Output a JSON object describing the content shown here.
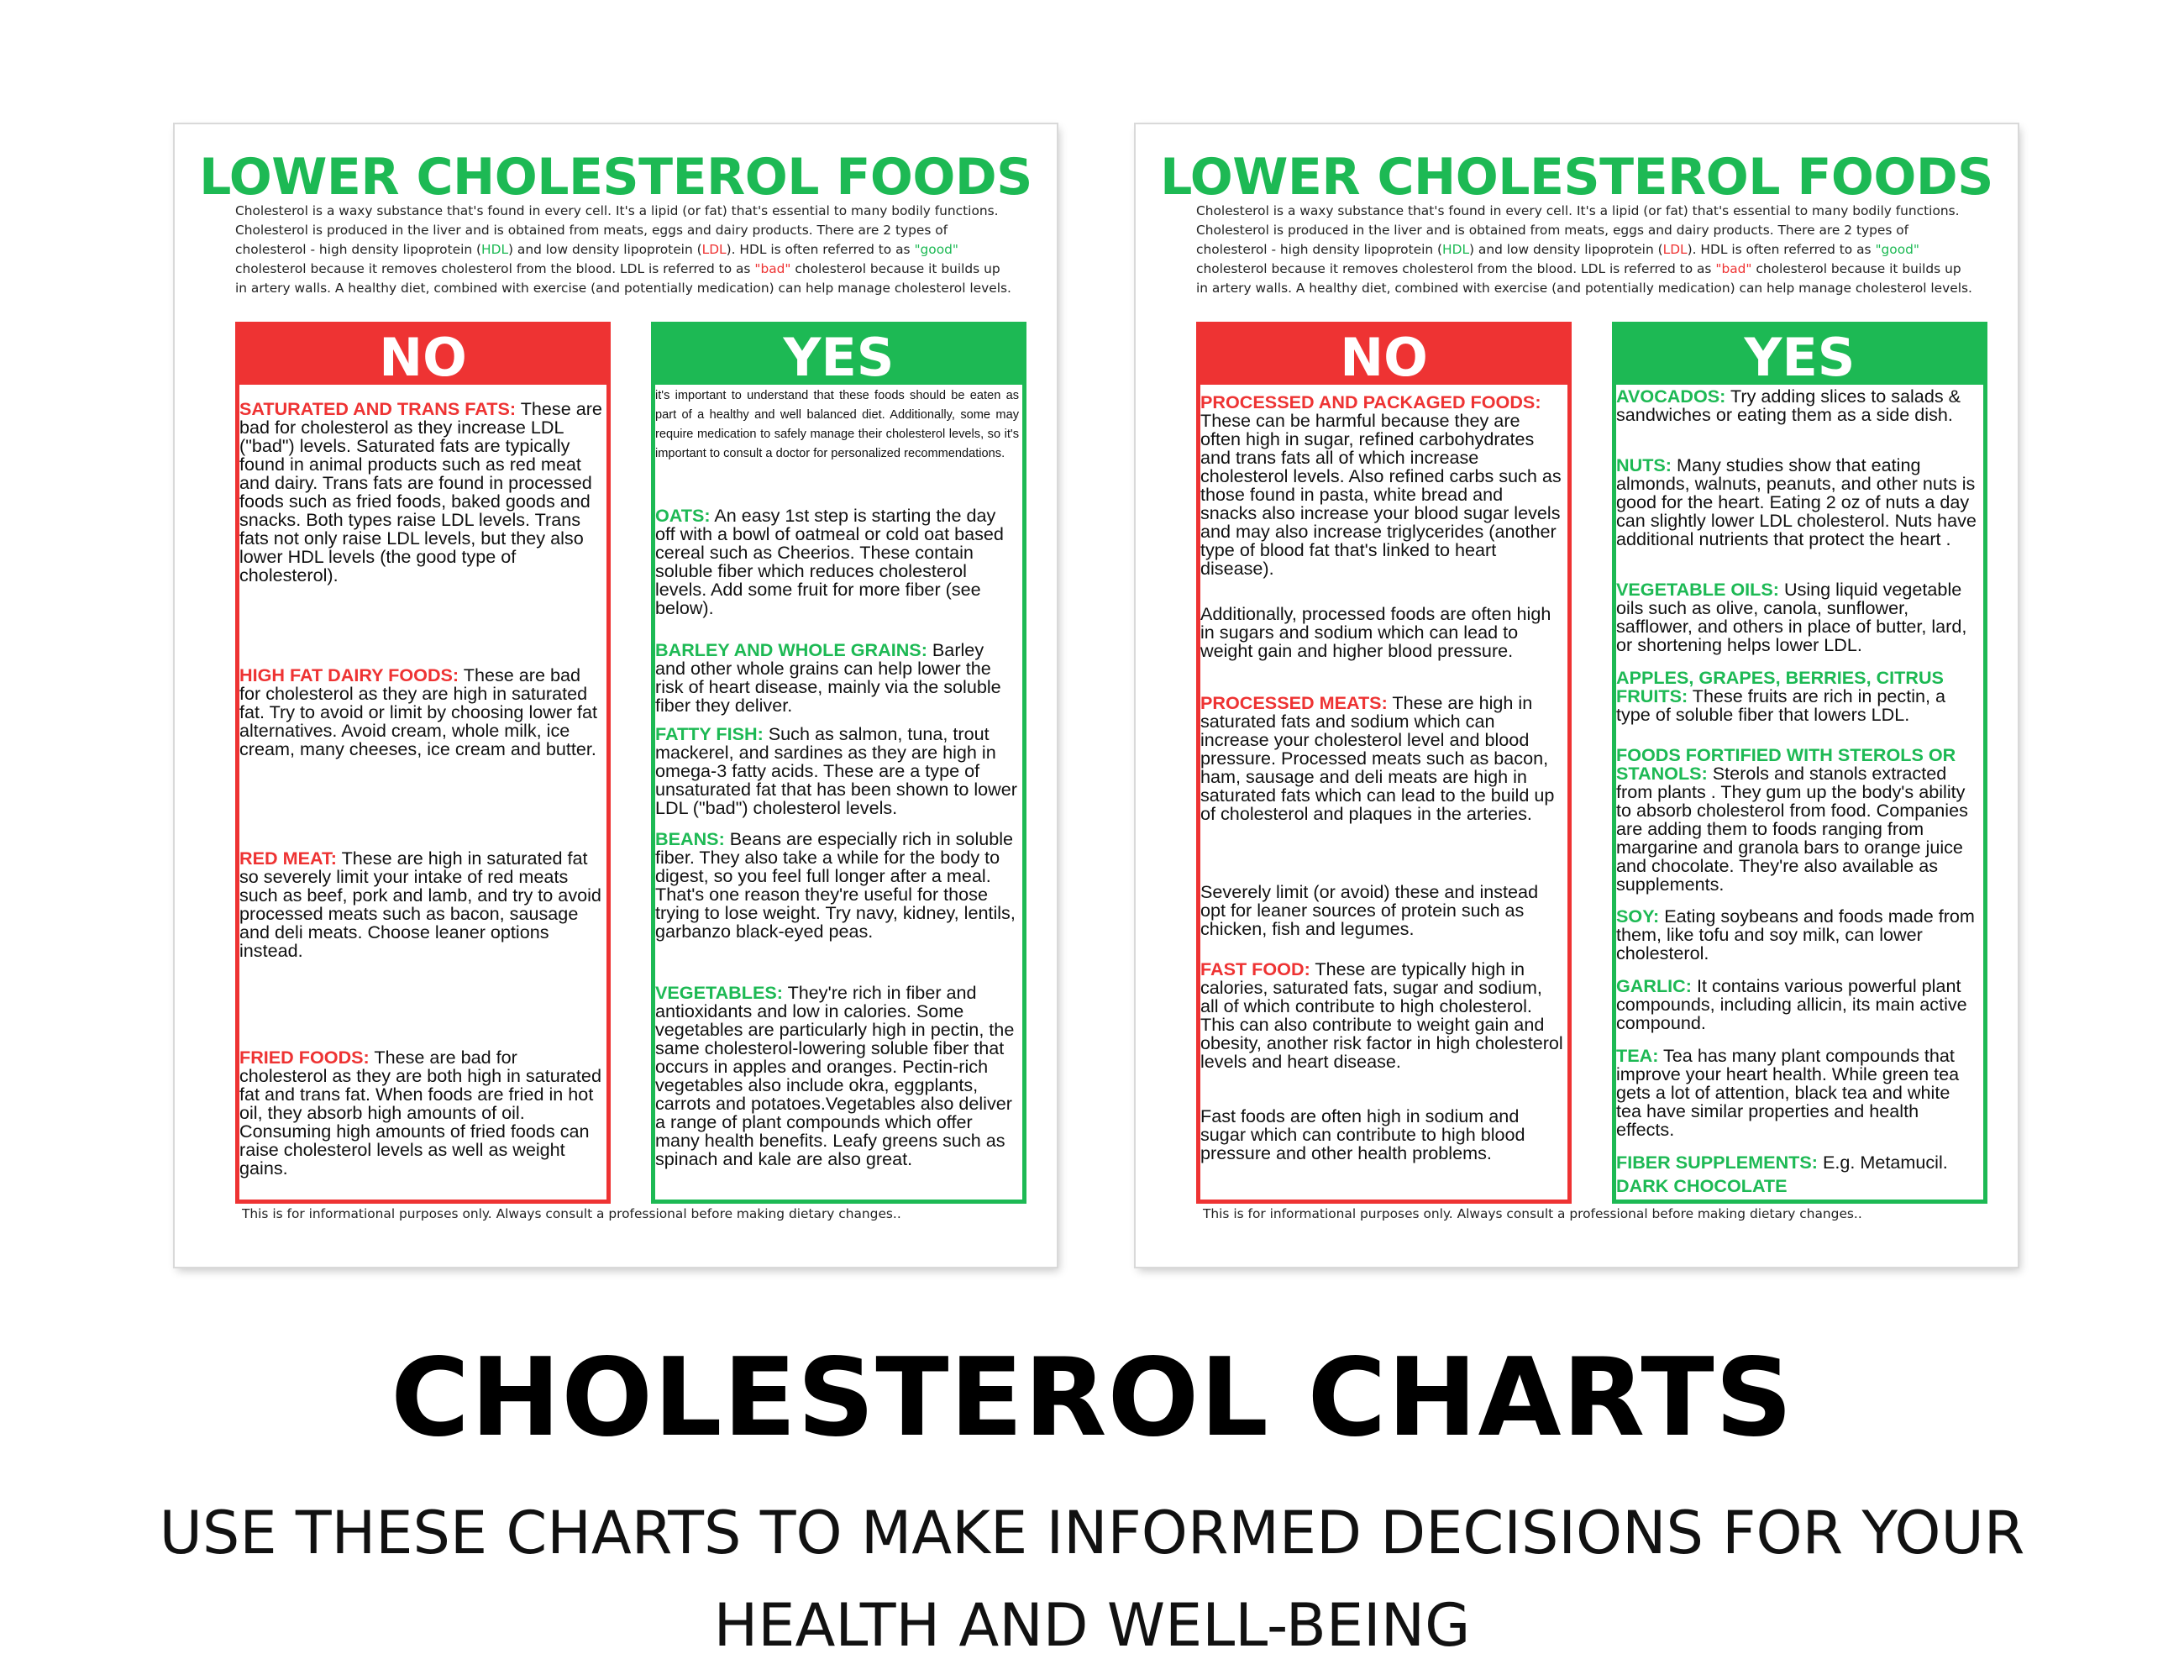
{
  "sheets": [
    {
      "title": "LOWER CHOLESTEROL FOODS",
      "intro": {
        "p1": "Cholesterol is a waxy substance that's found in every cell. It's a lipid (or fat) that's essential to many bodily functions. Cholesterol is produced in the liver and is obtained from meats, eggs and dairy products. There are 2 types of cholesterol - high density lipoprotein (",
        "hdl": "HDL",
        "p2": ") and low density lipoprotein (",
        "ldl": "LDL",
        "p3": "). HDL is often referred to as ",
        "good": "\"good\"",
        "p4": " cholesterol because it removes cholesterol from the blood. LDL is referred to as ",
        "bad": "\"bad\"",
        "p5": " cholesterol because it builds up in artery walls. A healthy diet, combined with exercise (and potentially medication) can help manage cholesterol levels."
      },
      "no": {
        "header": "NO",
        "items": [
          {
            "label": "SATURATED AND TRANS FATS:",
            "text": " These are bad for cholesterol as they increase LDL (\"bad\") levels. Saturated fats are typically found in animal products such as red meat and dairy. Trans fats are found in processed foods such as fried foods, baked goods and snacks. Both types raise LDL levels. Trans fats not only raise LDL levels, but they also lower HDL levels (the good type of cholesterol)."
          },
          {
            "label": "HIGH FAT DAIRY FOODS:",
            "text": " These are bad for cholesterol as they are high in saturated fat.  Try to avoid or limit by choosing lower fat alternatives.  Avoid cream, whole milk, ice cream, many cheeses, ice cream and butter."
          },
          {
            "label": "RED MEAT:",
            "text": " These are high in saturated fat so severely limit your intake of red meats such as beef, pork and lamb, and try to avoid processed meats such as bacon, sausage and deli meats.  Choose leaner options instead."
          },
          {
            "label": "FRIED FOODS:",
            "text": " These are bad for cholesterol as they are both high in saturated fat and trans fat.  When foods are fried in hot oil, they absorb high amounts of oil. Consuming high amounts of fried foods can raise cholesterol levels as well as weight gains."
          }
        ]
      },
      "yes": {
        "header": "YES",
        "note": "it's important to understand that these foods should be eaten as part of a healthy and well balanced diet. Additionally, some may require medication to safely manage their cholesterol levels, so it's important to consult a doctor for personalized recommendations.",
        "items": [
          {
            "label": "OATS:",
            "text": " An easy 1st step is starting the day off with a bowl of oatmeal or cold oat based cereal such as Cheerios.  These contain soluble fiber which reduces cholesterol levels. Add some fruit for more fiber (see below)."
          },
          {
            "label": "BARLEY AND WHOLE GRAINS:",
            "text": " Barley and other whole grains can help lower the risk of heart disease, mainly via the soluble fiber they deliver."
          },
          {
            "label": "FATTY FISH:",
            "text": " Such as salmon, tuna, trout mackerel, and sardines as they are high in omega-3 fatty acids.  These are a type of unsaturated fat that has been shown to lower LDL (\"bad\") cholesterol levels."
          },
          {
            "label": "BEANS:",
            "text": " Beans are especially rich in soluble fiber. They also take a while for the body to digest, so you feel full longer after a meal. That's one reason they're useful for those trying to lose weight.  Try navy, kidney, lentils, garbanzo black-eyed peas."
          },
          {
            "label": "VEGETABLES:",
            "text": " They're rich in fiber and antioxidants and low in calories. Some vegetables are particularly high in pectin, the same cholesterol-lowering soluble fiber that occurs in apples and oranges. Pectin-rich vegetables also include okra, eggplants, carrots and potatoes.Vegetables also deliver a range of plant compounds which offer many health benefits. Leafy greens such as spinach and kale are also great."
          }
        ]
      },
      "footer": "This is for informational purposes only. Always consult a professional before making dietary changes.."
    },
    {
      "title": "LOWER CHOLESTEROL FOODS",
      "intro": {
        "p1": "Cholesterol is a waxy substance that's found in every cell. It's a lipid (or fat) that's essential to many bodily functions. Cholesterol is produced in the liver and is obtained from meats, eggs and dairy products. There are 2 types of cholesterol - high density lipoprotein (",
        "hdl": "HDL",
        "p2": ") and low density lipoprotein (",
        "ldl": "LDL",
        "p3": "). HDL is often referred to as ",
        "good": "\"good\"",
        "p4": " cholesterol because it removes cholesterol from the blood. LDL is referred to as ",
        "bad": "\"bad\"",
        "p5": " cholesterol because it builds up in artery walls. A healthy diet, combined with exercise (and potentially medication) can help manage cholesterol levels."
      },
      "no": {
        "header": "NO",
        "items": [
          {
            "label": "PROCESSED AND PACKAGED FOODS:",
            "text": " These can be harmful because they are often high in sugar, refined carbohydrates and trans fats all of which increase cholesterol levels. Also refined carbs such as those found in pasta, white bread and snacks also increase your blood sugar levels and may also increase triglycerides (another type of blood fat that's linked to heart disease)."
          },
          {
            "label": "",
            "text": "Additionally, processed foods are often high in sugars and sodium which can lead to weight gain and higher blood pressure."
          },
          {
            "label": "PROCESSED MEATS:",
            "text": " These are high in saturated fats and sodium which can increase your cholesterol level and blood pressure. Processed meats such as bacon, ham, sausage and deli meats are high in saturated fats which can lead to the build up of cholesterol and plaques in the arteries."
          },
          {
            "label": "",
            "text": "Severely limit (or avoid) these and instead opt for leaner sources of protein  such as chicken, fish and legumes."
          },
          {
            "label": "FAST FOOD:",
            "text": " These are typically high in calories, saturated fats, sugar and sodium, all of which contribute to high cholesterol. This can also contribute to weight gain and obesity, another risk factor in high cholesterol levels and heart disease."
          },
          {
            "label": "",
            "text": "Fast foods are often high in sodium and sugar which can contribute to high blood pressure and other health problems."
          }
        ]
      },
      "yes": {
        "header": "YES",
        "items": [
          {
            "label": "AVOCADOS:",
            "text": " Try adding slices to salads & sandwiches or eating them as a side dish."
          },
          {
            "label": "NUTS:",
            "text": " Many studies show that eating almonds, walnuts, peanuts, and other nuts is good for the heart. Eating 2 oz of nuts a day can slightly lower LDL cholesterol. Nuts have additional nutrients that protect the heart ."
          },
          {
            "label": "VEGETABLE OILS:",
            "text": " Using liquid vegetable oils such as olive, canola, sunflower, safflower, and others in place of butter, lard, or shortening helps lower LDL."
          },
          {
            "label": "APPLES, GRAPES, BERRIES, CITRUS FRUITS:",
            "text": " These fruits are rich in pectin, a type of soluble fiber that lowers LDL."
          },
          {
            "label": "FOODS FORTIFIED WITH STEROLS OR STANOLS:",
            "text": " Sterols and stanols extracted from plants . They gum up the body's ability to absorb cholesterol from food. Companies are adding them to foods ranging from margarine and granola bars to orange juice and chocolate. They're also available as supplements."
          },
          {
            "label": "SOY:",
            "text": " Eating soybeans and foods made from them, like tofu and soy milk, can lower cholesterol."
          },
          {
            "label": "GARLIC:",
            "text": " It contains various powerful plant compounds, including allicin, its main active compound."
          },
          {
            "label": "TEA:",
            "text": " Tea has many plant compounds that improve your heart health. While green tea gets a lot of attention, black tea and white tea have similar properties and health effects."
          },
          {
            "label": "FIBER SUPPLEMENTS:",
            "text": " E.g. Metamucil."
          },
          {
            "label": "DARK CHOCOLATE",
            "text": ""
          }
        ]
      },
      "footer": "This is for informational purposes only. Always consult a professional before making dietary changes.."
    }
  ],
  "heading": "CHOLESTEROL CHARTS",
  "subheading_line1": "USE THESE CHARTS TO MAKE INFORMED DECISIONS FOR YOUR",
  "subheading_line2": "HEALTH AND WELL-BEING"
}
